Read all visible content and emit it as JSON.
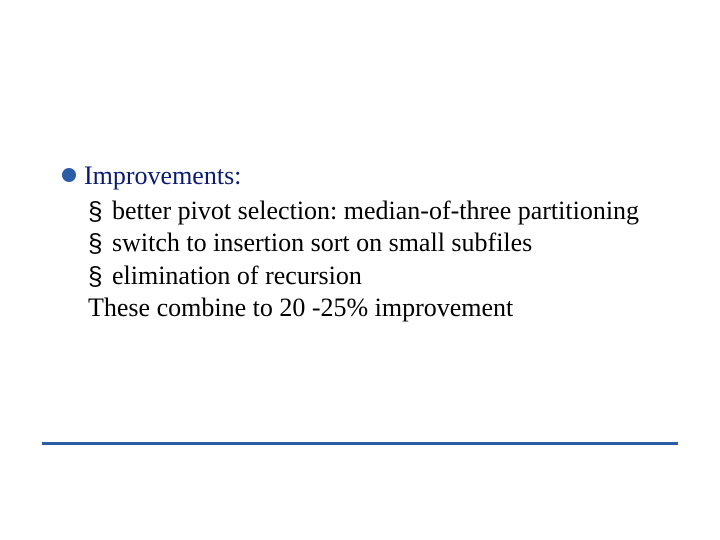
{
  "slide": {
    "heading_color": "#0b1b72",
    "body_color": "#000000",
    "bullet_color": "#2b5ca8",
    "rule_color": "#2b5ca8",
    "background_color": "#ffffff",
    "font_family": "Times New Roman",
    "heading_fontsize": 26,
    "body_fontsize": 26,
    "heading": "Improvements:",
    "items": [
      {
        "marker": "§",
        "text": "better pivot selection: median-of-three partitioning"
      },
      {
        "marker": "§",
        "text": "switch to insertion sort on small subfiles"
      },
      {
        "marker": "§",
        "text": "elimination of recursion"
      }
    ],
    "summary": "These combine to 20 -25% improvement"
  }
}
